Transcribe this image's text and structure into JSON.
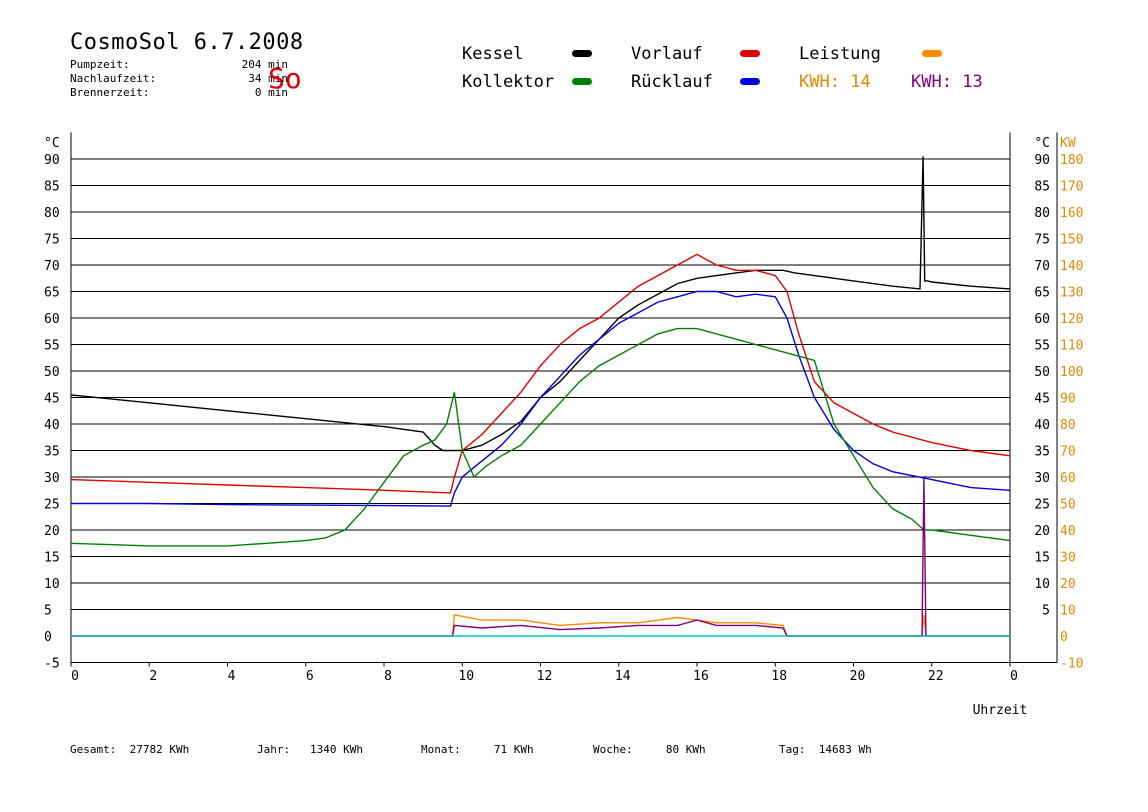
{
  "header": {
    "title": "CosmoSol 6.7.2008",
    "day": "So",
    "stats": [
      {
        "label": "Pumpzeit:",
        "value": "204 min"
      },
      {
        "label": "Nachlaufzeit:",
        "value": "34 min"
      },
      {
        "label": "Brennerzeit:",
        "value": "0 min"
      }
    ]
  },
  "legend": [
    {
      "label": "Kessel",
      "color": "#000000"
    },
    {
      "label": "Vorlauf",
      "color": "#e00000"
    },
    {
      "label": "Leistung",
      "color": "#ff8c00"
    },
    {
      "label": "Kollektor",
      "color": "#008000"
    },
    {
      "label": "Rücklauf",
      "color": "#0000e0"
    }
  ],
  "kwh": [
    {
      "label": "KWH:",
      "value": "14",
      "color": "#e08a00"
    },
    {
      "label": "KWH:",
      "value": "13",
      "color": "#800080"
    }
  ],
  "footer": [
    {
      "label": "Gesamt:",
      "value": "27782 KWh"
    },
    {
      "label": "Jahr:",
      "value": "1340 KWh"
    },
    {
      "label": "Monat:",
      "value": "71 KWh"
    },
    {
      "label": "Woche:",
      "value": "80 KWh"
    },
    {
      "label": "Tag:",
      "value": "14683 Wh"
    }
  ],
  "chart_data": {
    "type": "line",
    "xlabel": "Uhrzeit",
    "ylabel_left": "°C",
    "ylabel_right_1": "°C",
    "ylabel_right_2": "KW",
    "xlim": [
      0,
      24
    ],
    "x_tick_labels": [
      "0",
      "2",
      "4",
      "6",
      "8",
      "10",
      "12",
      "14",
      "16",
      "18",
      "20",
      "22",
      "0"
    ],
    "ylim": [
      -5,
      95
    ],
    "y_tick_labels_left": [
      "-5",
      "0",
      "5",
      "10",
      "15",
      "20",
      "25",
      "30",
      "35",
      "40",
      "45",
      "50",
      "55",
      "60",
      "65",
      "70",
      "75",
      "80",
      "85",
      "90"
    ],
    "y_tick_labels_right": [
      "5",
      "10",
      "15",
      "20",
      "25",
      "30",
      "35",
      "40",
      "45",
      "50",
      "55",
      "60",
      "65",
      "70",
      "75",
      "80",
      "85",
      "90"
    ],
    "y_tick_labels_kw": [
      "-10",
      "0",
      "10",
      "20",
      "30",
      "40",
      "50",
      "60",
      "70",
      "80",
      "90",
      "100",
      "110",
      "120",
      "130",
      "140",
      "150",
      "160",
      "170",
      "180"
    ],
    "grid": true,
    "series": [
      {
        "name": "Kessel",
        "color": "#000000",
        "x": [
          0,
          2,
          4,
          6,
          8,
          9.0,
          9.3,
          9.5,
          9.8,
          10.0,
          10.5,
          11.0,
          11.5,
          12.0,
          12.5,
          13.0,
          13.5,
          14.0,
          14.5,
          15.0,
          15.5,
          16.0,
          16.5,
          17.0,
          17.5,
          18.0,
          18.2,
          18.5,
          19.0,
          20.0,
          21.0,
          21.7,
          21.78,
          21.82,
          21.9,
          22.0,
          23.0,
          24.0
        ],
        "y": [
          45.5,
          44,
          42.5,
          41,
          39.5,
          38.5,
          36,
          35,
          35,
          35,
          36,
          38,
          40.5,
          45,
          48,
          52,
          56,
          60,
          62.5,
          64.5,
          66.5,
          67.5,
          68,
          68.5,
          69,
          69,
          69,
          68.5,
          68,
          67,
          66,
          65.5,
          90.5,
          67,
          67,
          66.8,
          66,
          65.5
        ]
      },
      {
        "name": "Vorlauf",
        "color": "#e00000",
        "x": [
          0,
          2,
          4,
          6,
          8,
          9.7,
          9.8,
          10.0,
          10.5,
          11.0,
          11.5,
          12.0,
          12.5,
          13.0,
          13.5,
          14.0,
          14.5,
          15.0,
          15.5,
          16.0,
          16.5,
          17.0,
          17.5,
          18.0,
          18.3,
          18.6,
          19.0,
          19.5,
          20.0,
          20.5,
          21.0,
          22.0,
          23.0,
          24.0
        ],
        "y": [
          29.5,
          29,
          28.5,
          28,
          27.5,
          27,
          30,
          35,
          38,
          42,
          46,
          51,
          55,
          58,
          60,
          63,
          66,
          68,
          70,
          72,
          70,
          69,
          69,
          68,
          65,
          57,
          48,
          44,
          42,
          40,
          38.5,
          36.5,
          35,
          34
        ]
      },
      {
        "name": "Rücklauf",
        "color": "#0000e0",
        "x": [
          0,
          2,
          4,
          6,
          8,
          9.7,
          9.8,
          10.0,
          10.5,
          11.0,
          11.5,
          12.0,
          12.5,
          13.0,
          13.5,
          14.0,
          14.5,
          15.0,
          15.5,
          16.0,
          16.5,
          17.0,
          17.5,
          18.0,
          18.3,
          18.6,
          19.0,
          19.5,
          20.0,
          20.5,
          21.0,
          22.0,
          23.0,
          24.0
        ],
        "y": [
          25,
          25,
          24.8,
          24.7,
          24.6,
          24.5,
          27,
          30,
          33,
          36,
          40,
          45,
          49,
          53,
          56,
          59,
          61,
          63,
          64,
          65,
          65,
          64,
          64.5,
          64,
          60,
          53,
          45,
          39,
          35,
          32.5,
          31,
          29.5,
          28,
          27.5
        ]
      },
      {
        "name": "Kollektor",
        "color": "#008000",
        "x": [
          0,
          2,
          4,
          5,
          6,
          6.5,
          7,
          7.5,
          8,
          8.5,
          9.0,
          9.3,
          9.6,
          9.8,
          10.0,
          10.3,
          10.6,
          11.0,
          11.5,
          12.0,
          12.5,
          13.0,
          13.5,
          14.0,
          14.5,
          15.0,
          15.5,
          16.0,
          16.5,
          17.0,
          17.5,
          18.0,
          18.5,
          19.0,
          19.5,
          20.0,
          20.5,
          21.0,
          21.5,
          21.8,
          22.0,
          23.0,
          24.0
        ],
        "y": [
          17.5,
          17,
          17,
          17.5,
          18,
          18.5,
          20,
          24,
          29,
          34,
          36,
          37,
          40,
          46,
          35,
          30,
          32,
          34,
          36,
          40,
          44,
          48,
          51,
          53,
          55,
          57,
          58,
          58,
          57,
          56,
          55,
          54,
          53,
          52,
          40,
          34,
          28,
          24,
          22,
          20,
          20,
          19,
          18
        ]
      },
      {
        "name": "Leistung",
        "color": "#ff8c00",
        "x": [
          0,
          9.75,
          9.8,
          10.5,
          11.5,
          12.5,
          13.5,
          14.5,
          15.5,
          16.0,
          16.5,
          17.5,
          18.2,
          18.3,
          21.75,
          21.8,
          21.85,
          24.0
        ],
        "y": [
          0,
          0,
          4,
          3,
          3,
          2,
          2.5,
          2.5,
          3.5,
          3,
          2.5,
          2.5,
          2,
          0,
          0,
          4,
          0,
          0
        ]
      },
      {
        "name": "Leistung",
        "color": "#800080",
        "x": [
          0,
          9.75,
          9.8,
          10.5,
          11.5,
          12.5,
          13.5,
          14.5,
          15.5,
          16.0,
          16.5,
          17.5,
          18.2,
          18.3,
          21.75,
          21.8,
          21.85,
          24.0
        ],
        "y": [
          0,
          0,
          2,
          1.5,
          2,
          1.2,
          1.5,
          2,
          2,
          3,
          2,
          2,
          1.5,
          0,
          0,
          30,
          0,
          0
        ]
      },
      {
        "name": "",
        "color": "#00c8c8",
        "x": [
          0,
          24
        ],
        "y": [
          0,
          0
        ]
      }
    ]
  }
}
